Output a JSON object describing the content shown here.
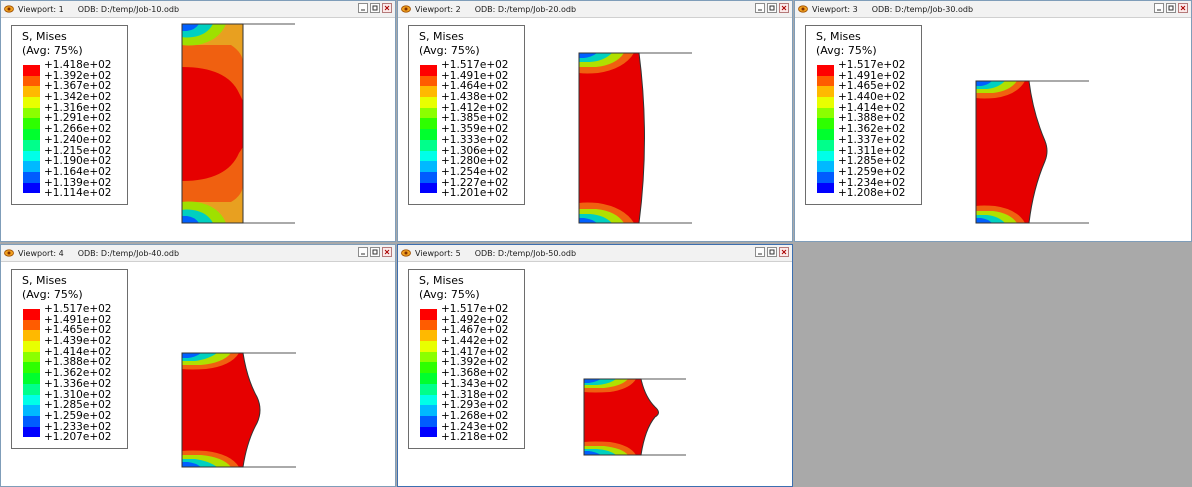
{
  "app_colors": {
    "background": "#a9a9a9",
    "contour": [
      "#0000ff",
      "#005cff",
      "#00b9ff",
      "#00ffe8",
      "#00ff8b",
      "#00ff2e",
      "#2eff00",
      "#8bff00",
      "#e8ff00",
      "#ffb900",
      "#ff5c00",
      "#ff0000"
    ],
    "hot": "#e60000"
  },
  "viewports": [
    {
      "title": "Viewport: 1",
      "odb": "ODB: D:/temp/Job-10.odb",
      "legend": {
        "title": "S, Mises",
        "avg": "(Avg: 75%)",
        "values": [
          "+1.418e+02",
          "+1.392e+02",
          "+1.367e+02",
          "+1.342e+02",
          "+1.316e+02",
          "+1.291e+02",
          "+1.266e+02",
          "+1.240e+02",
          "+1.215e+02",
          "+1.190e+02",
          "+1.164e+02",
          "+1.139e+02",
          "+1.114e+02"
        ]
      }
    },
    {
      "title": "Viewport: 2",
      "odb": "ODB: D:/temp/Job-20.odb",
      "legend": {
        "title": "S, Mises",
        "avg": "(Avg: 75%)",
        "values": [
          "+1.517e+02",
          "+1.491e+02",
          "+1.464e+02",
          "+1.438e+02",
          "+1.412e+02",
          "+1.385e+02",
          "+1.359e+02",
          "+1.333e+02",
          "+1.306e+02",
          "+1.280e+02",
          "+1.254e+02",
          "+1.227e+02",
          "+1.201e+02"
        ]
      }
    },
    {
      "title": "Viewport: 3",
      "odb": "ODB: D:/temp/Job-30.odb",
      "legend": {
        "title": "S, Mises",
        "avg": "(Avg: 75%)",
        "values": [
          "+1.517e+02",
          "+1.491e+02",
          "+1.465e+02",
          "+1.440e+02",
          "+1.414e+02",
          "+1.388e+02",
          "+1.362e+02",
          "+1.337e+02",
          "+1.311e+02",
          "+1.285e+02",
          "+1.259e+02",
          "+1.234e+02",
          "+1.208e+02"
        ]
      }
    },
    {
      "title": "Viewport: 4",
      "odb": "ODB: D:/temp/Job-40.odb",
      "legend": {
        "title": "S, Mises",
        "avg": "(Avg: 75%)",
        "values": [
          "+1.517e+02",
          "+1.491e+02",
          "+1.465e+02",
          "+1.439e+02",
          "+1.414e+02",
          "+1.388e+02",
          "+1.362e+02",
          "+1.336e+02",
          "+1.310e+02",
          "+1.285e+02",
          "+1.259e+02",
          "+1.233e+02",
          "+1.207e+02"
        ]
      }
    },
    {
      "title": "Viewport: 5",
      "odb": "ODB: D:/temp/Job-50.odb",
      "legend": {
        "title": "S, Mises",
        "avg": "(Avg: 75%)",
        "values": [
          "+1.517e+02",
          "+1.492e+02",
          "+1.467e+02",
          "+1.442e+02",
          "+1.417e+02",
          "+1.392e+02",
          "+1.368e+02",
          "+1.343e+02",
          "+1.318e+02",
          "+1.293e+02",
          "+1.268e+02",
          "+1.243e+02",
          "+1.218e+02"
        ]
      }
    }
  ]
}
